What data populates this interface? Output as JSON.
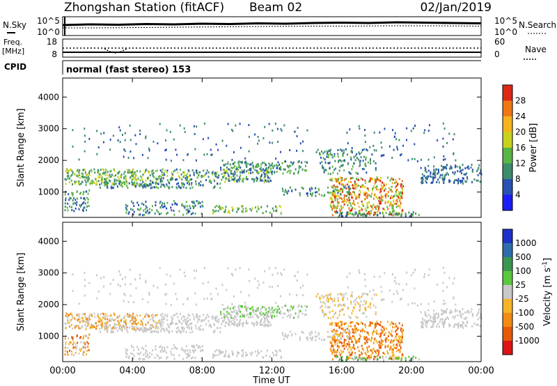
{
  "header": {
    "station": "Zhongshan Station (fitACF)",
    "beam": "Beam 02",
    "date": "02/Jan/2019"
  },
  "panels": {
    "nsky_label": "N.Sky",
    "nsearch_label": "N.Search",
    "nsky_ticks": [
      "10^5",
      "10^0"
    ],
    "nsearch_ticks": [
      "10^5",
      "10^0"
    ],
    "freq_label_1": "Freq.",
    "freq_label_2": "[MHz]",
    "freq_ticks": [
      "18",
      "8"
    ],
    "nave_label": "Nave",
    "nave_ticks": [
      "60",
      "0"
    ],
    "cpid_label": "CPID",
    "cpid_value": "normal (fast stereo) 153"
  },
  "chart_data": [
    {
      "type": "heatmap",
      "name": "power",
      "ylabel": "Slant Range [km]",
      "yticks": [
        "1000",
        "2000",
        "3000",
        "4000"
      ],
      "ytick_values": [
        1000,
        2000,
        3000,
        4000
      ],
      "ylim": [
        200,
        4600
      ],
      "xlim": [
        0,
        24
      ],
      "colorbar_label": "Power [dB]",
      "colorbar_ticks": [
        "4",
        "8",
        "12",
        "16",
        "20",
        "24",
        "28"
      ],
      "colorbar_colors": [
        "#1c1cf5",
        "#2850b0",
        "#3c8c6e",
        "#5ab446",
        "#c8d21e",
        "#f5b41e",
        "#f07814",
        "#dc2814"
      ]
    },
    {
      "type": "heatmap",
      "name": "velocity",
      "ylabel": "Slant Range [km]",
      "yticks": [
        "1000",
        "2000",
        "3000",
        "4000"
      ],
      "ytick_values": [
        1000,
        2000,
        3000,
        4000
      ],
      "ylim": [
        200,
        4600
      ],
      "xlim": [
        0,
        24
      ],
      "colorbar_label": "Velocity [m s",
      "colorbar_label_sup": "-1",
      "colorbar_ticks": [
        "1000",
        "500",
        "100",
        "25",
        "-25",
        "-100",
        "-500",
        "-1000"
      ],
      "colorbar_colors": [
        "#1e32c8",
        "#2d6eaa",
        "#3c9650",
        "#5ac83c",
        "#c8c8c8",
        "#f5b428",
        "#f08c14",
        "#e65a0a",
        "#dc1414"
      ]
    }
  ],
  "xaxis": {
    "ticks": [
      "00:00",
      "04:00",
      "08:00",
      "12:00",
      "16:00",
      "20:00",
      "00:00"
    ],
    "tick_hours": [
      0,
      4,
      8,
      12,
      16,
      20,
      24
    ],
    "label": "Time UT"
  }
}
